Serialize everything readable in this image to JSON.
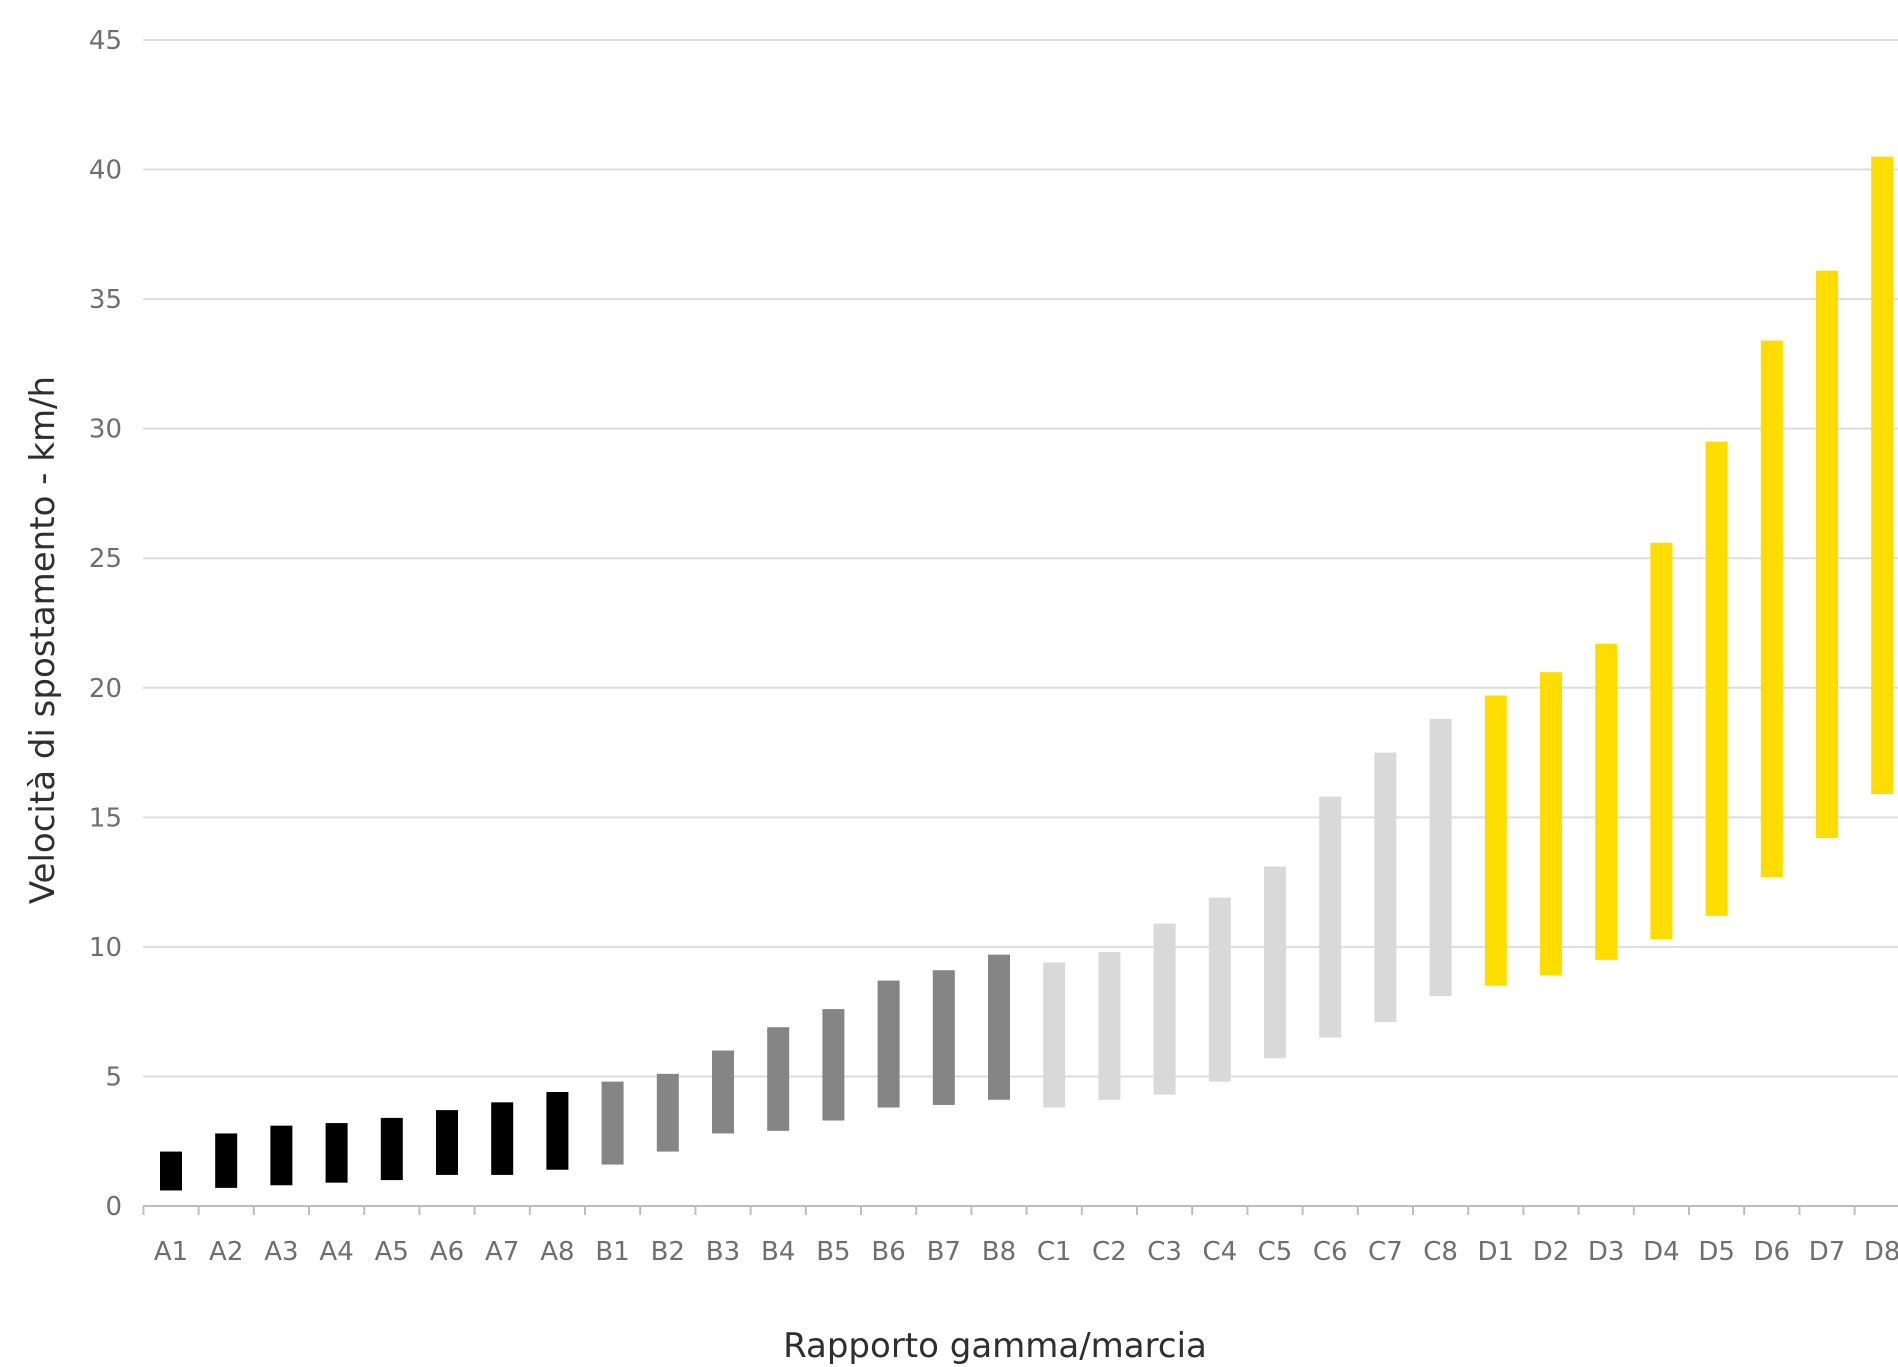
{
  "chart_data": {
    "type": "bar",
    "subtype": "floating-range",
    "xlabel": "Rapporto gamma/marcia",
    "ylabel": "Velocità di spostamento - km/h",
    "ylim": [
      0,
      45
    ],
    "yticks": [
      0,
      5,
      10,
      15,
      20,
      25,
      30,
      35,
      40,
      45
    ],
    "grid": "horizontal",
    "legend": "none",
    "colors": {
      "A": "#000000",
      "B": "#858585",
      "C": "#d9d9d9",
      "D": "#ffdd00",
      "grid": "#dddddd",
      "axis": "#bdbdbd"
    },
    "categories": [
      "A1",
      "A2",
      "A3",
      "A4",
      "A5",
      "A6",
      "A7",
      "A8",
      "B1",
      "B2",
      "B3",
      "B4",
      "B5",
      "B6",
      "B7",
      "B8",
      "C1",
      "C2",
      "C3",
      "C4",
      "C5",
      "C6",
      "C7",
      "C8",
      "D1",
      "D2",
      "D3",
      "D4",
      "D5",
      "D6",
      "D7",
      "D8"
    ],
    "groups": [
      "A",
      "A",
      "A",
      "A",
      "A",
      "A",
      "A",
      "A",
      "B",
      "B",
      "B",
      "B",
      "B",
      "B",
      "B",
      "B",
      "C",
      "C",
      "C",
      "C",
      "C",
      "C",
      "C",
      "C",
      "D",
      "D",
      "D",
      "D",
      "D",
      "D",
      "D",
      "D"
    ],
    "min": [
      0.6,
      0.7,
      0.8,
      0.9,
      1.0,
      1.2,
      1.2,
      1.4,
      1.6,
      2.1,
      2.8,
      2.9,
      3.3,
      3.8,
      3.9,
      4.1,
      3.8,
      4.1,
      4.3,
      4.8,
      5.7,
      6.5,
      7.1,
      8.1,
      8.5,
      8.9,
      9.5,
      10.3,
      11.2,
      12.7,
      14.2,
      15.9
    ],
    "max": [
      2.1,
      2.8,
      3.1,
      3.2,
      3.4,
      3.7,
      4.0,
      4.4,
      4.8,
      5.1,
      6.0,
      6.9,
      7.6,
      8.7,
      9.1,
      9.7,
      9.4,
      9.8,
      10.9,
      11.9,
      13.1,
      15.8,
      17.5,
      18.8,
      19.7,
      20.6,
      21.7,
      25.6,
      29.5,
      33.4,
      36.1,
      40.5
    ]
  }
}
